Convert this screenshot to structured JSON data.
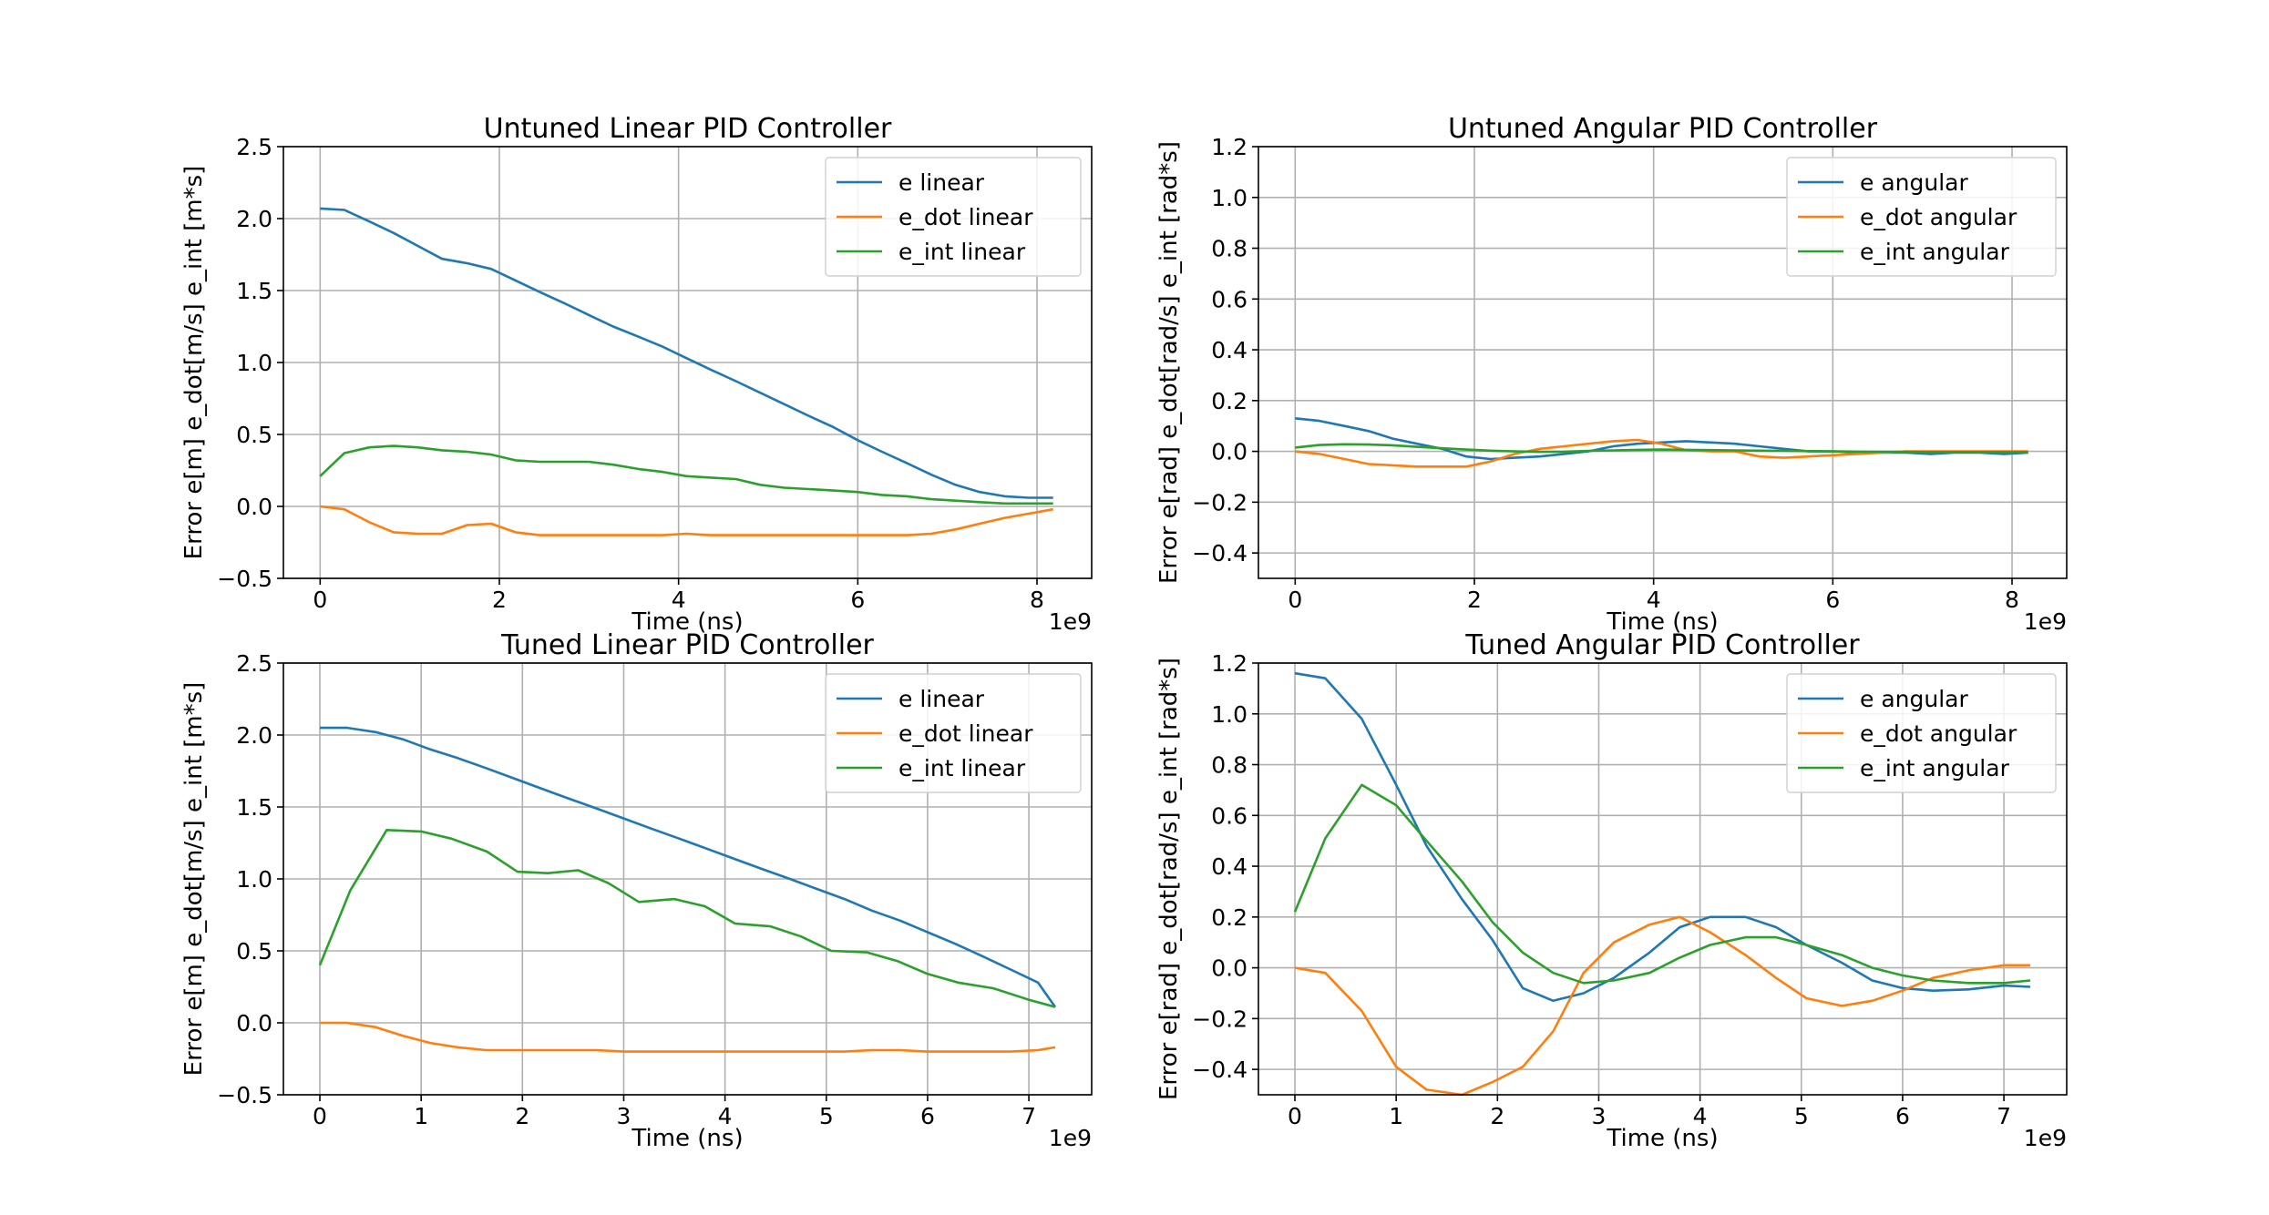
{
  "chart_data": [
    {
      "type": "line",
      "title": "Untuned Linear PID Controller",
      "xlabel": "Time (ns)",
      "ylabel": "Error e[m] e_dot[m/s] e_int [m*s]",
      "x_multiplier_label": "1e9",
      "xlim": [
        -0.41,
        8.61
      ],
      "ylim": [
        -0.5,
        2.5
      ],
      "xticks": [
        0,
        2,
        4,
        6,
        8
      ],
      "xtick_labels": [
        "0",
        "2",
        "4",
        "6",
        "8"
      ],
      "yticks": [
        -0.5,
        0.0,
        0.5,
        1.0,
        1.5,
        2.0,
        2.5
      ],
      "ytick_labels": [
        "−0.5",
        "0.0",
        "0.5",
        "1.0",
        "1.5",
        "2.0",
        "2.5"
      ],
      "grid": true,
      "legend": "top-right",
      "series": [
        {
          "name": "e linear",
          "color": "#1f77b4",
          "x": [
            0,
            0.27,
            0.55,
            0.82,
            1.09,
            1.36,
            1.64,
            1.91,
            2.18,
            2.45,
            2.73,
            3.0,
            3.27,
            3.55,
            3.82,
            4.09,
            4.36,
            4.64,
            4.91,
            5.18,
            5.45,
            5.73,
            6.0,
            6.27,
            6.55,
            6.82,
            7.09,
            7.36,
            7.64,
            7.91,
            8.18
          ],
          "y": [
            2.07,
            2.06,
            1.98,
            1.9,
            1.81,
            1.72,
            1.69,
            1.65,
            1.57,
            1.49,
            1.41,
            1.33,
            1.25,
            1.18,
            1.11,
            1.03,
            0.95,
            0.87,
            0.79,
            0.71,
            0.63,
            0.55,
            0.46,
            0.38,
            0.3,
            0.22,
            0.15,
            0.1,
            0.07,
            0.06,
            0.06
          ]
        },
        {
          "name": "e_dot linear",
          "color": "#ff7f0e",
          "x": [
            0,
            0.27,
            0.55,
            0.82,
            1.09,
            1.36,
            1.64,
            1.91,
            2.18,
            2.45,
            2.73,
            3.0,
            3.27,
            3.55,
            3.82,
            4.09,
            4.36,
            4.64,
            4.91,
            5.18,
            5.45,
            5.73,
            6.0,
            6.27,
            6.55,
            6.82,
            7.09,
            7.36,
            7.64,
            7.91,
            8.18
          ],
          "y": [
            0.0,
            -0.02,
            -0.11,
            -0.18,
            -0.19,
            -0.19,
            -0.13,
            -0.12,
            -0.18,
            -0.2,
            -0.2,
            -0.2,
            -0.2,
            -0.2,
            -0.2,
            -0.19,
            -0.2,
            -0.2,
            -0.2,
            -0.2,
            -0.2,
            -0.2,
            -0.2,
            -0.2,
            -0.2,
            -0.19,
            -0.16,
            -0.12,
            -0.08,
            -0.05,
            -0.02
          ]
        },
        {
          "name": "e_int linear",
          "color": "#2ca02c",
          "x": [
            0,
            0.27,
            0.55,
            0.82,
            1.09,
            1.36,
            1.64,
            1.91,
            2.18,
            2.45,
            2.73,
            3.0,
            3.27,
            3.55,
            3.82,
            4.09,
            4.36,
            4.64,
            4.91,
            5.18,
            5.45,
            5.73,
            6.0,
            6.27,
            6.55,
            6.82,
            7.09,
            7.36,
            7.64,
            7.91,
            8.18
          ],
          "y": [
            0.21,
            0.37,
            0.41,
            0.42,
            0.41,
            0.39,
            0.38,
            0.36,
            0.32,
            0.31,
            0.31,
            0.31,
            0.29,
            0.26,
            0.24,
            0.21,
            0.2,
            0.19,
            0.15,
            0.13,
            0.12,
            0.11,
            0.1,
            0.08,
            0.07,
            0.05,
            0.04,
            0.03,
            0.02,
            0.02,
            0.02
          ]
        }
      ]
    },
    {
      "type": "line",
      "title": "Untuned Angular PID Controller",
      "xlabel": "Time (ns)",
      "ylabel": "Error e[rad] e_dot[rad/s] e_int [rad*s]",
      "x_multiplier_label": "1e9",
      "xlim": [
        -0.41,
        8.61
      ],
      "ylim": [
        -0.5,
        1.2
      ],
      "xticks": [
        0,
        2,
        4,
        6,
        8
      ],
      "xtick_labels": [
        "0",
        "2",
        "4",
        "6",
        "8"
      ],
      "yticks": [
        -0.4,
        -0.2,
        0.0,
        0.2,
        0.4,
        0.6,
        0.8,
        1.0,
        1.2
      ],
      "ytick_labels": [
        "−0.4",
        "−0.2",
        "0.0",
        "0.2",
        "0.4",
        "0.6",
        "0.8",
        "1.0",
        "1.2"
      ],
      "grid": true,
      "legend": "top-right",
      "series": [
        {
          "name": "e angular",
          "color": "#1f77b4",
          "x": [
            0,
            0.27,
            0.55,
            0.82,
            1.09,
            1.36,
            1.64,
            1.91,
            2.18,
            2.45,
            2.73,
            3.0,
            3.27,
            3.55,
            3.82,
            4.09,
            4.36,
            4.64,
            4.91,
            5.18,
            5.45,
            5.73,
            6.0,
            6.27,
            6.55,
            6.82,
            7.09,
            7.36,
            7.64,
            7.91,
            8.18
          ],
          "y": [
            0.13,
            0.12,
            0.1,
            0.08,
            0.05,
            0.03,
            0.01,
            -0.02,
            -0.03,
            -0.025,
            -0.02,
            -0.01,
            0.0,
            0.02,
            0.03,
            0.035,
            0.04,
            0.035,
            0.03,
            0.02,
            0.01,
            0.0,
            0.0,
            -0.005,
            -0.005,
            -0.005,
            -0.01,
            -0.005,
            -0.005,
            -0.01,
            -0.005
          ]
        },
        {
          "name": "e_dot angular",
          "color": "#ff7f0e",
          "x": [
            0,
            0.27,
            0.55,
            0.82,
            1.09,
            1.36,
            1.64,
            1.91,
            2.18,
            2.45,
            2.73,
            3.0,
            3.27,
            3.55,
            3.82,
            4.09,
            4.36,
            4.64,
            4.91,
            5.18,
            5.45,
            5.73,
            6.0,
            6.27,
            6.55,
            6.82,
            7.09,
            7.36,
            7.64,
            7.91,
            8.18
          ],
          "y": [
            0.0,
            -0.01,
            -0.03,
            -0.05,
            -0.055,
            -0.06,
            -0.06,
            -0.06,
            -0.04,
            -0.01,
            0.01,
            0.02,
            0.03,
            0.04,
            0.045,
            0.03,
            0.005,
            0.0,
            0.0,
            -0.02,
            -0.025,
            -0.02,
            -0.015,
            -0.01,
            -0.005,
            0.0,
            0.0,
            0.0,
            0.0,
            0.0,
            0.0
          ]
        },
        {
          "name": "e_int angular",
          "color": "#2ca02c",
          "x": [
            0,
            0.27,
            0.55,
            0.82,
            1.09,
            1.36,
            1.64,
            1.91,
            2.18,
            2.45,
            2.73,
            3.0,
            3.27,
            3.55,
            3.82,
            4.09,
            4.36,
            4.64,
            4.91,
            5.18,
            5.45,
            5.73,
            6.0,
            6.27,
            6.55,
            6.82,
            7.09,
            7.36,
            7.64,
            7.91,
            8.18
          ],
          "y": [
            0.015,
            0.025,
            0.028,
            0.027,
            0.024,
            0.018,
            0.012,
            0.007,
            0.003,
            0.0,
            -0.002,
            -0.001,
            0.002,
            0.004,
            0.006,
            0.007,
            0.006,
            0.005,
            0.004,
            0.003,
            0.002,
            0.001,
            0.0,
            -0.001,
            -0.002,
            -0.002,
            -0.003,
            -0.003,
            -0.003,
            -0.003,
            -0.003
          ]
        }
      ]
    },
    {
      "type": "line",
      "title": "Tuned Linear PID Controller",
      "xlabel": "Time (ns)",
      "ylabel": "Error e[m] e_dot[m/s] e_int [m*s]",
      "x_multiplier_label": "1e9",
      "xlim": [
        -0.36,
        7.62
      ],
      "ylim": [
        -0.5,
        2.5
      ],
      "xticks": [
        0,
        1,
        2,
        3,
        4,
        5,
        6,
        7
      ],
      "xtick_labels": [
        "0",
        "1",
        "2",
        "3",
        "4",
        "5",
        "6",
        "7"
      ],
      "yticks": [
        -0.5,
        0.0,
        0.5,
        1.0,
        1.5,
        2.0,
        2.5
      ],
      "ytick_labels": [
        "−0.5",
        "0.0",
        "0.5",
        "1.0",
        "1.5",
        "2.0",
        "2.5"
      ],
      "grid": true,
      "legend": "top-right",
      "series": [
        {
          "name": "e linear",
          "color": "#1f77b4",
          "x": [
            0,
            0.27,
            0.55,
            0.82,
            1.09,
            1.36,
            1.64,
            1.91,
            2.18,
            2.45,
            2.73,
            3.0,
            3.27,
            3.55,
            3.82,
            4.09,
            4.36,
            4.64,
            4.91,
            5.18,
            5.45,
            5.73,
            6.0,
            6.27,
            6.55,
            6.82,
            7.09,
            7.26
          ],
          "y": [
            2.05,
            2.05,
            2.02,
            1.97,
            1.9,
            1.84,
            1.77,
            1.7,
            1.63,
            1.56,
            1.49,
            1.42,
            1.35,
            1.28,
            1.21,
            1.14,
            1.07,
            1.0,
            0.93,
            0.86,
            0.78,
            0.71,
            0.63,
            0.55,
            0.46,
            0.37,
            0.28,
            0.11
          ]
        },
        {
          "name": "e_dot linear",
          "color": "#ff7f0e",
          "x": [
            0,
            0.27,
            0.55,
            0.82,
            1.09,
            1.36,
            1.64,
            1.91,
            2.18,
            2.45,
            2.73,
            3.0,
            3.27,
            3.55,
            3.82,
            4.09,
            4.36,
            4.64,
            4.91,
            5.18,
            5.45,
            5.73,
            6.0,
            6.27,
            6.55,
            6.82,
            7.09,
            7.26
          ],
          "y": [
            0.0,
            0.0,
            -0.03,
            -0.09,
            -0.14,
            -0.17,
            -0.19,
            -0.19,
            -0.19,
            -0.19,
            -0.19,
            -0.2,
            -0.2,
            -0.2,
            -0.2,
            -0.2,
            -0.2,
            -0.2,
            -0.2,
            -0.2,
            -0.19,
            -0.19,
            -0.2,
            -0.2,
            -0.2,
            -0.2,
            -0.19,
            -0.17
          ]
        },
        {
          "name": "e_int linear",
          "color": "#2ca02c",
          "x": [
            0,
            0.3,
            0.66,
            1.0,
            1.3,
            1.65,
            1.95,
            2.25,
            2.55,
            2.85,
            3.15,
            3.5,
            3.8,
            4.1,
            4.45,
            4.75,
            5.05,
            5.4,
            5.7,
            6.0,
            6.3,
            6.65,
            7.0,
            7.26
          ],
          "y": [
            0.4,
            0.92,
            1.34,
            1.33,
            1.28,
            1.19,
            1.05,
            1.04,
            1.06,
            0.97,
            0.84,
            0.86,
            0.81,
            0.69,
            0.67,
            0.6,
            0.5,
            0.49,
            0.43,
            0.34,
            0.28,
            0.24,
            0.16,
            0.11
          ]
        }
      ]
    },
    {
      "type": "line",
      "title": "Tuned Angular PID Controller",
      "xlabel": "Time (ns)",
      "ylabel": "Error e[rad] e_dot[rad/s] e_int [rad*s]",
      "x_multiplier_label": "1e9",
      "xlim": [
        -0.36,
        7.62
      ],
      "ylim": [
        -0.5,
        1.2
      ],
      "xticks": [
        0,
        1,
        2,
        3,
        4,
        5,
        6,
        7
      ],
      "xtick_labels": [
        "0",
        "1",
        "2",
        "3",
        "4",
        "5",
        "6",
        "7"
      ],
      "yticks": [
        -0.4,
        -0.2,
        0.0,
        0.2,
        0.4,
        0.6,
        0.8,
        1.0,
        1.2
      ],
      "ytick_labels": [
        "−0.4",
        "−0.2",
        "0.0",
        "0.2",
        "0.4",
        "0.6",
        "0.8",
        "1.0",
        "1.2"
      ],
      "grid": true,
      "legend": "top-right",
      "series": [
        {
          "name": "e angular",
          "color": "#1f77b4",
          "x": [
            0,
            0.3,
            0.66,
            1.0,
            1.3,
            1.65,
            1.95,
            2.25,
            2.55,
            2.85,
            3.15,
            3.5,
            3.8,
            4.1,
            4.45,
            4.75,
            5.05,
            5.4,
            5.7,
            6.0,
            6.3,
            6.65,
            7.0,
            7.26
          ],
          "y": [
            1.16,
            1.14,
            0.98,
            0.72,
            0.48,
            0.27,
            0.11,
            -0.08,
            -0.13,
            -0.1,
            -0.04,
            0.06,
            0.16,
            0.2,
            0.2,
            0.16,
            0.09,
            0.02,
            -0.05,
            -0.08,
            -0.09,
            -0.085,
            -0.07,
            -0.075
          ]
        },
        {
          "name": "e_dot angular",
          "color": "#ff7f0e",
          "x": [
            0,
            0.3,
            0.66,
            1.0,
            1.3,
            1.65,
            1.95,
            2.25,
            2.55,
            2.85,
            3.15,
            3.5,
            3.8,
            4.1,
            4.45,
            4.75,
            5.05,
            5.4,
            5.7,
            6.0,
            6.3,
            6.65,
            7.0,
            7.26
          ],
          "y": [
            0.0,
            -0.02,
            -0.17,
            -0.39,
            -0.48,
            -0.5,
            -0.45,
            -0.39,
            -0.25,
            -0.02,
            0.1,
            0.17,
            0.2,
            0.14,
            0.05,
            -0.04,
            -0.12,
            -0.15,
            -0.13,
            -0.09,
            -0.04,
            -0.01,
            0.01,
            0.01
          ]
        },
        {
          "name": "e_int angular",
          "color": "#2ca02c",
          "x": [
            0,
            0.3,
            0.66,
            1.0,
            1.3,
            1.65,
            1.95,
            2.25,
            2.55,
            2.85,
            3.15,
            3.5,
            3.8,
            4.1,
            4.45,
            4.75,
            5.05,
            5.4,
            5.7,
            6.0,
            6.3,
            6.65,
            7.0,
            7.26
          ],
          "y": [
            0.22,
            0.51,
            0.72,
            0.64,
            0.5,
            0.34,
            0.18,
            0.06,
            -0.02,
            -0.06,
            -0.05,
            -0.02,
            0.04,
            0.09,
            0.12,
            0.12,
            0.09,
            0.05,
            0.0,
            -0.03,
            -0.05,
            -0.06,
            -0.06,
            -0.05
          ]
        }
      ]
    }
  ]
}
